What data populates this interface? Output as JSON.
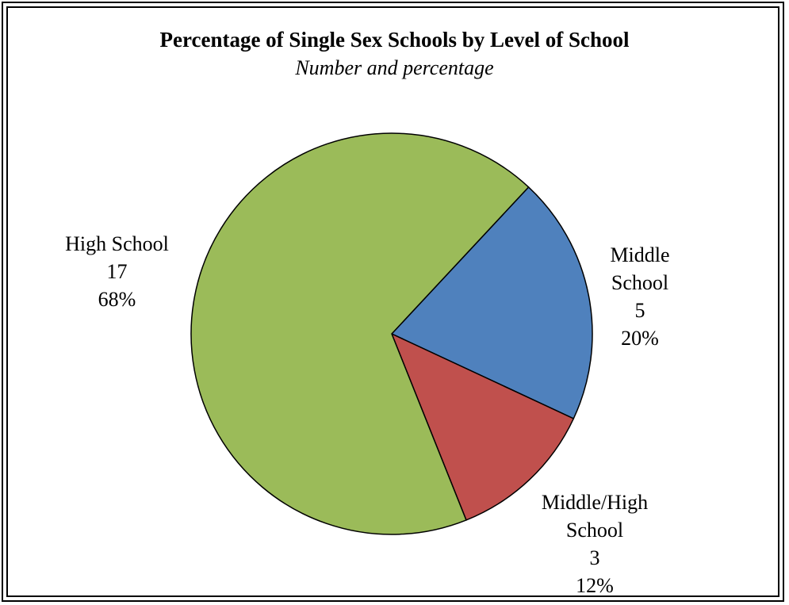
{
  "chart_data": {
    "type": "pie",
    "title": "Percentage of Single Sex Schools by Level of School",
    "subtitle": "Number and percentage",
    "slices": [
      {
        "name": "Middle School",
        "name_lines": [
          "Middle",
          "School"
        ],
        "value": 5,
        "percent": "20%",
        "color": "#4F81BD"
      },
      {
        "name": "Middle/High School",
        "name_lines": [
          "Middle/High",
          "School"
        ],
        "value": 3,
        "percent": "12%",
        "color": "#C0504D"
      },
      {
        "name": "High School",
        "name_lines": [
          "High School"
        ],
        "value": 17,
        "percent": "68%",
        "color": "#9BBB59"
      }
    ],
    "start_angle_deg": 43,
    "direction": "clockwise",
    "legend": "none"
  }
}
